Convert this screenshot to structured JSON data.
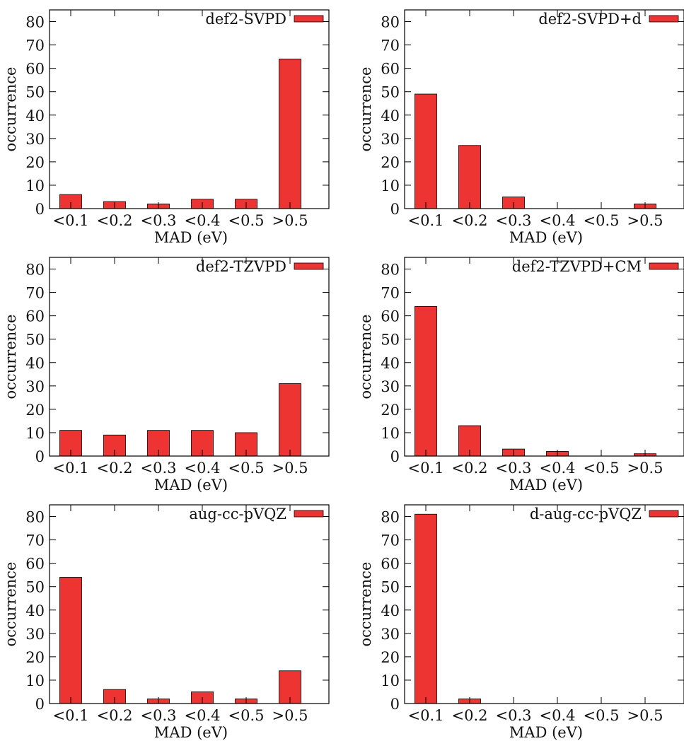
{
  "chart_data": [
    {
      "type": "bar",
      "legend": "def2-SVPD",
      "legend_position": "top-right",
      "categories": [
        "<0.1",
        "<0.2",
        "<0.3",
        "<0.4",
        "<0.5",
        ">0.5"
      ],
      "values": [
        6,
        3,
        2,
        4,
        4,
        64
      ],
      "xlabel": "MAD (eV)",
      "ylabel": "occurrence",
      "ylim": [
        0,
        85
      ],
      "yticks": [
        0,
        10,
        20,
        30,
        40,
        50,
        60,
        70,
        80
      ],
      "color": "#ee3333"
    },
    {
      "type": "bar",
      "legend": "def2-SVPD+d",
      "legend_position": "top-right",
      "categories": [
        "<0.1",
        "<0.2",
        "<0.3",
        "<0.4",
        "<0.5",
        ">0.5"
      ],
      "values": [
        49,
        27,
        5,
        0,
        0,
        2
      ],
      "xlabel": "MAD (eV)",
      "ylabel": "occurrence",
      "ylim": [
        0,
        85
      ],
      "yticks": [
        0,
        10,
        20,
        30,
        40,
        50,
        60,
        70,
        80
      ],
      "color": "#ee3333"
    },
    {
      "type": "bar",
      "legend": "def2-TZVPD",
      "legend_position": "top-right",
      "categories": [
        "<0.1",
        "<0.2",
        "<0.3",
        "<0.4",
        "<0.5",
        ">0.5"
      ],
      "values": [
        11,
        9,
        11,
        11,
        10,
        31
      ],
      "xlabel": "MAD (eV)",
      "ylabel": "occurrence",
      "ylim": [
        0,
        85
      ],
      "yticks": [
        0,
        10,
        20,
        30,
        40,
        50,
        60,
        70,
        80
      ],
      "color": "#ee3333"
    },
    {
      "type": "bar",
      "legend": "def2-TZVPD+CM",
      "legend_position": "top-right",
      "categories": [
        "<0.1",
        "<0.2",
        "<0.3",
        "<0.4",
        "<0.5",
        ">0.5"
      ],
      "values": [
        64,
        13,
        3,
        2,
        0,
        1
      ],
      "xlabel": "MAD (eV)",
      "ylabel": "occurrence",
      "ylim": [
        0,
        85
      ],
      "yticks": [
        0,
        10,
        20,
        30,
        40,
        50,
        60,
        70,
        80
      ],
      "color": "#ee3333"
    },
    {
      "type": "bar",
      "legend": "aug-cc-pVQZ",
      "legend_position": "top-right",
      "categories": [
        "<0.1",
        "<0.2",
        "<0.3",
        "<0.4",
        "<0.5",
        ">0.5"
      ],
      "values": [
        54,
        6,
        2,
        5,
        2,
        14
      ],
      "xlabel": "MAD (eV)",
      "ylabel": "occurrence",
      "ylim": [
        0,
        85
      ],
      "yticks": [
        0,
        10,
        20,
        30,
        40,
        50,
        60,
        70,
        80
      ],
      "color": "#ee3333"
    },
    {
      "type": "bar",
      "legend": "d-aug-cc-pVQZ",
      "legend_position": "top-right",
      "categories": [
        "<0.1",
        "<0.2",
        "<0.3",
        "<0.4",
        "<0.5",
        ">0.5"
      ],
      "values": [
        81,
        2,
        0,
        0,
        0,
        0
      ],
      "xlabel": "MAD (eV)",
      "ylabel": "occurrence",
      "ylim": [
        0,
        85
      ],
      "yticks": [
        0,
        10,
        20,
        30,
        40,
        50,
        60,
        70,
        80
      ],
      "color": "#ee3333"
    }
  ]
}
